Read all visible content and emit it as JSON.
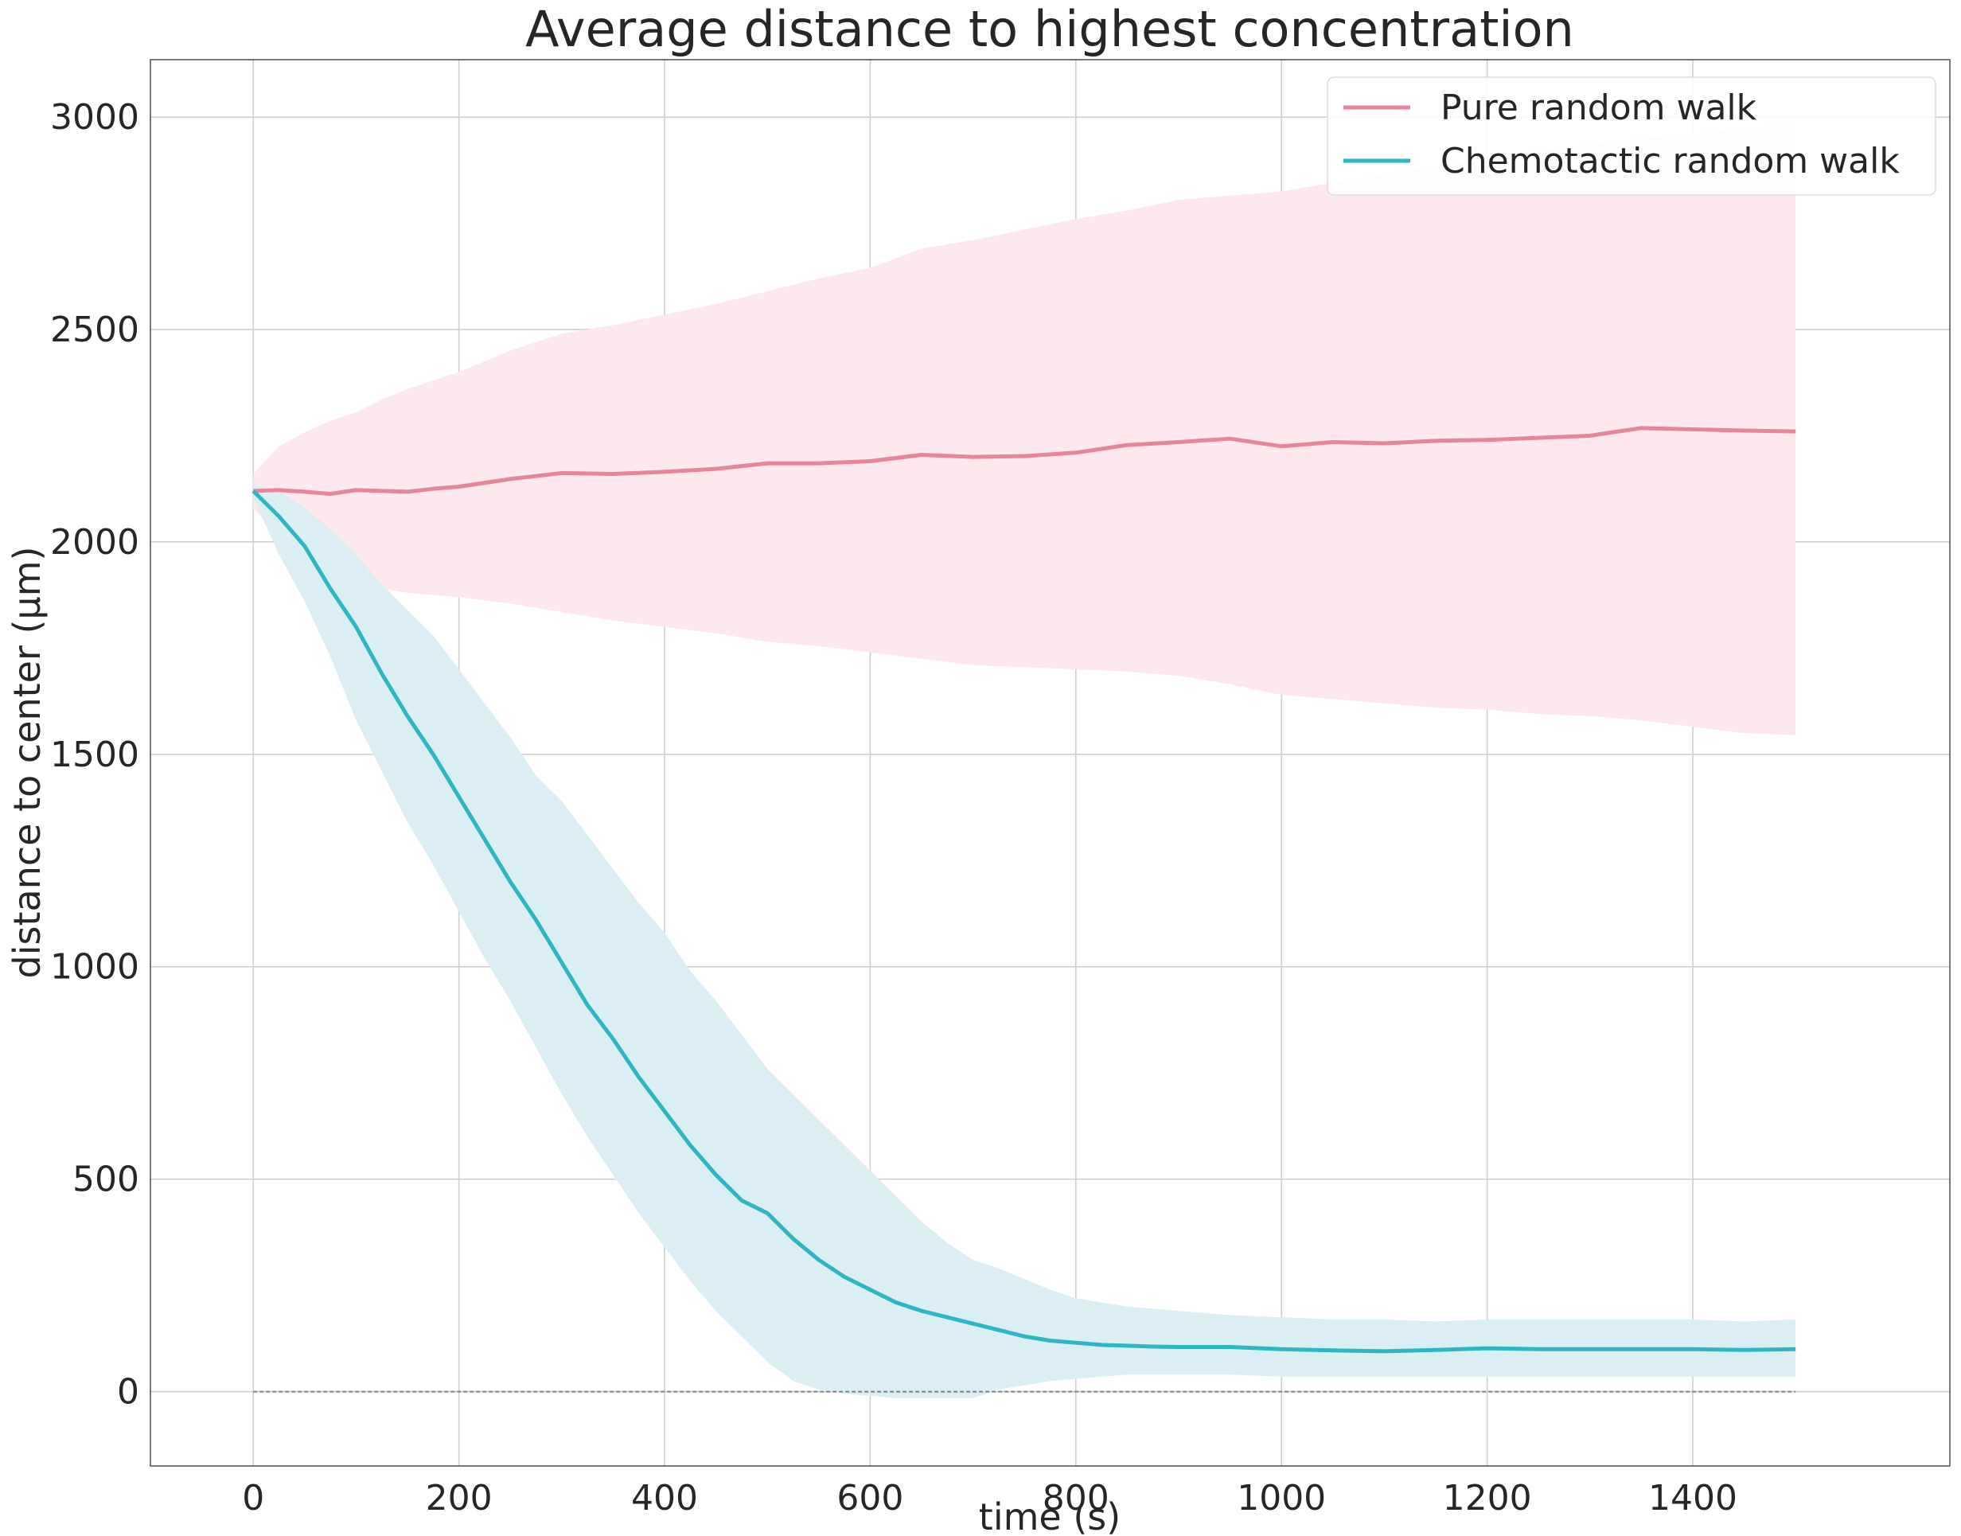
{
  "chart_data": {
    "type": "line",
    "title": "Average distance to highest concentration",
    "xlabel": "time (s)",
    "ylabel": "distance to center (μm)",
    "xlim": [
      -100,
      1650
    ],
    "ylim": [
      -175,
      3135
    ],
    "xticks": [
      0,
      200,
      400,
      600,
      800,
      1000,
      1200,
      1400
    ],
    "yticks": [
      0,
      500,
      1000,
      1500,
      2000,
      2500,
      3000
    ],
    "xtick_labels": [
      "0",
      "200",
      "400",
      "600",
      "800",
      "1000",
      "1200",
      "1400"
    ],
    "ytick_labels": [
      "0",
      "500",
      "1000",
      "1500",
      "2000",
      "2500",
      "3000"
    ],
    "grid": true,
    "legend_position": "top-right",
    "reference_line": {
      "y": 0,
      "x_range": [
        0,
        1500
      ],
      "style": "dashed",
      "color": "#7f7f7f"
    },
    "series": [
      {
        "name": "Pure random walk",
        "color": "#e8859a",
        "band_color": "#fce8ed",
        "x": [
          0,
          25,
          50,
          75,
          100,
          125,
          150,
          175,
          200,
          250,
          300,
          350,
          400,
          450,
          500,
          550,
          600,
          650,
          700,
          750,
          800,
          850,
          900,
          950,
          1000,
          1050,
          1100,
          1150,
          1200,
          1250,
          1300,
          1350,
          1400,
          1450,
          1500
        ],
        "mean": [
          2120,
          2122,
          2118,
          2113,
          2122,
          2120,
          2118,
          2125,
          2130,
          2148,
          2162,
          2160,
          2165,
          2172,
          2185,
          2185,
          2190,
          2205,
          2200,
          2202,
          2210,
          2228,
          2235,
          2243,
          2225,
          2235,
          2232,
          2238,
          2240,
          2245,
          2250,
          2268,
          2265,
          2262,
          2260
        ],
        "upper": [
          2160,
          2225,
          2258,
          2285,
          2305,
          2335,
          2360,
          2380,
          2400,
          2450,
          2490,
          2510,
          2535,
          2560,
          2590,
          2620,
          2645,
          2690,
          2710,
          2735,
          2760,
          2780,
          2805,
          2815,
          2825,
          2845,
          2865,
          2885,
          2900,
          2920,
          2935,
          2950,
          2960,
          2975,
          2980
        ],
        "lower": [
          2080,
          2010,
          1960,
          1925,
          1905,
          1890,
          1880,
          1875,
          1870,
          1855,
          1835,
          1815,
          1800,
          1785,
          1765,
          1755,
          1740,
          1725,
          1710,
          1705,
          1700,
          1695,
          1685,
          1665,
          1640,
          1630,
          1620,
          1610,
          1605,
          1595,
          1590,
          1580,
          1565,
          1550,
          1545
        ]
      },
      {
        "name": "Chemotactic random walk",
        "color": "#2cb7c5",
        "band_color": "#daeef3",
        "x": [
          0,
          25,
          50,
          75,
          100,
          125,
          150,
          175,
          200,
          225,
          250,
          275,
          300,
          325,
          350,
          375,
          400,
          425,
          450,
          475,
          500,
          525,
          550,
          575,
          600,
          625,
          650,
          675,
          700,
          725,
          750,
          775,
          800,
          825,
          850,
          875,
          900,
          950,
          1000,
          1050,
          1100,
          1150,
          1200,
          1250,
          1300,
          1350,
          1400,
          1450,
          1500
        ],
        "mean": [
          2120,
          2060,
          1990,
          1890,
          1800,
          1690,
          1590,
          1500,
          1400,
          1300,
          1200,
          1110,
          1010,
          910,
          830,
          740,
          660,
          580,
          510,
          450,
          420,
          360,
          310,
          270,
          240,
          210,
          190,
          175,
          160,
          145,
          130,
          120,
          115,
          110,
          108,
          106,
          105,
          105,
          100,
          97,
          95,
          98,
          102,
          100,
          100,
          100,
          100,
          98,
          100
        ],
        "upper": [
          2135,
          2120,
          2080,
          2030,
          1970,
          1900,
          1840,
          1780,
          1700,
          1620,
          1540,
          1450,
          1390,
          1310,
          1230,
          1150,
          1080,
          990,
          920,
          840,
          760,
          700,
          640,
          580,
          520,
          460,
          400,
          350,
          310,
          290,
          265,
          240,
          220,
          210,
          200,
          195,
          190,
          180,
          175,
          170,
          170,
          165,
          170,
          170,
          170,
          170,
          170,
          165,
          170
        ],
        "lower": [
          2105,
          1970,
          1860,
          1730,
          1580,
          1460,
          1340,
          1240,
          1130,
          1020,
          920,
          810,
          700,
          600,
          510,
          420,
          340,
          260,
          190,
          130,
          70,
          25,
          5,
          -5,
          -10,
          -15,
          -15,
          -15,
          -15,
          5,
          15,
          25,
          30,
          35,
          40,
          40,
          40,
          40,
          35,
          35,
          35,
          35,
          35,
          35,
          35,
          35,
          35,
          35,
          35
        ]
      }
    ]
  }
}
